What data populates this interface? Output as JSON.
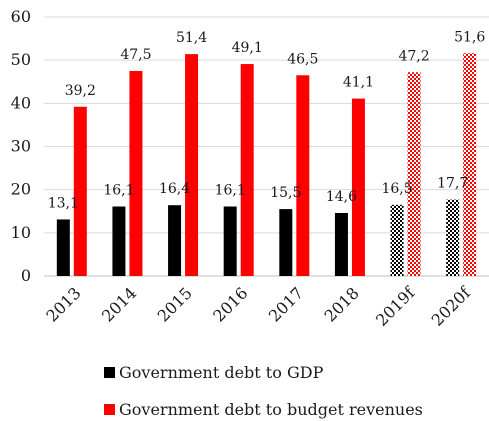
{
  "chart_data": {
    "type": "bar",
    "categories": [
      "2013",
      "2014",
      "2015",
      "2016",
      "2017",
      "2018",
      "2019f",
      "2020f"
    ],
    "forecast_categories": [
      "2019f",
      "2020f"
    ],
    "series": [
      {
        "name": "Government debt to GDP",
        "color": "#000000",
        "values": [
          13.1,
          16.1,
          16.4,
          16.1,
          15.5,
          14.6,
          16.5,
          17.7
        ],
        "labels": [
          "13,1",
          "16,1",
          "16,4",
          "16,1",
          "15,5",
          "14,6",
          "16,5",
          "17,7"
        ]
      },
      {
        "name": "Government debt to budget revenues",
        "color": "#ff0000",
        "values": [
          39.2,
          47.5,
          51.4,
          49.1,
          46.5,
          41.1,
          47.2,
          51.6
        ],
        "labels": [
          "39,2",
          "47,5",
          "51,4",
          "49,1",
          "46,5",
          "41,1",
          "47,2",
          "51,6"
        ]
      }
    ],
    "ylim": [
      0,
      60
    ],
    "yticks": [
      "0",
      "10",
      "20",
      "30",
      "40",
      "50",
      "60"
    ],
    "grid": true,
    "legend_position": "bottom"
  }
}
